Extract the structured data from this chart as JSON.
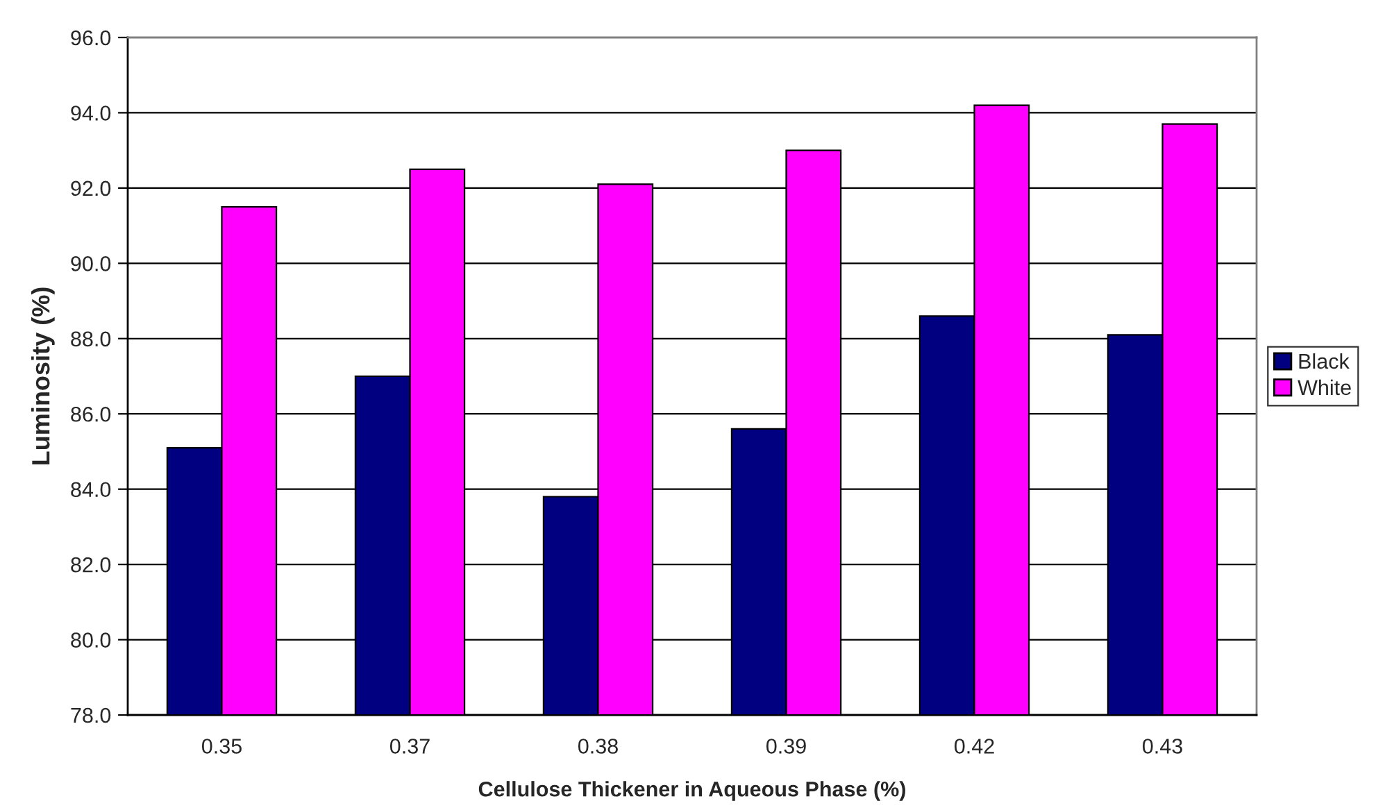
{
  "chart_data": {
    "type": "bar",
    "xlabel": "Cellulose Thickener in Aqueous Phase (%)",
    "ylabel": "Luminosity (%)",
    "categories": [
      "0.35",
      "0.37",
      "0.38",
      "0.39",
      "0.42",
      "0.43"
    ],
    "series": [
      {
        "name": "Black",
        "color": "#000080",
        "values": [
          85.1,
          87.0,
          83.8,
          85.6,
          88.6,
          88.1
        ]
      },
      {
        "name": "White",
        "color": "#ff00ff",
        "values": [
          91.5,
          92.5,
          92.1,
          93.0,
          94.2,
          93.7
        ]
      }
    ],
    "ylim": [
      78,
      96
    ],
    "yticks": [
      {
        "value": 78,
        "label": "78.0"
      },
      {
        "value": 80,
        "label": "80.0"
      },
      {
        "value": 82,
        "label": "82.0"
      },
      {
        "value": 84,
        "label": "84.0"
      },
      {
        "value": 86,
        "label": "86.0"
      },
      {
        "value": 88,
        "label": "88.0"
      },
      {
        "value": 90,
        "label": "90.0"
      },
      {
        "value": 92,
        "label": "92.0"
      },
      {
        "value": 94,
        "label": "94.0"
      },
      {
        "value": 96,
        "label": "96.0"
      }
    ],
    "grid": "y",
    "legend": "right"
  }
}
